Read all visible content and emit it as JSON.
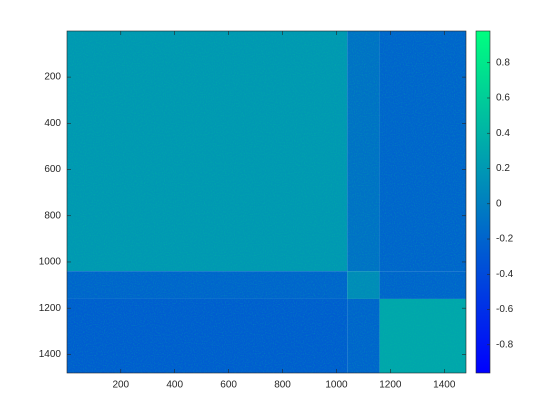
{
  "chart_data": {
    "type": "heatmap",
    "col_edges": [
      0.5,
      1040,
      1160,
      1480.5
    ],
    "row_edges": [
      0.5,
      1040,
      1160,
      1480.5
    ],
    "values": [
      [
        0.2,
        -0.1,
        -0.2
      ],
      [
        -0.2,
        0.1,
        -0.2
      ],
      [
        -0.25,
        -0.2,
        0.3
      ]
    ],
    "xlim": [
      0.5,
      1480.5
    ],
    "ylim": [
      0.5,
      1480.5
    ],
    "y_reversed": true,
    "xticks": [
      200,
      400,
      600,
      800,
      1000,
      1200,
      1400
    ],
    "yticks": [
      200,
      400,
      600,
      800,
      1000,
      1200,
      1400
    ],
    "colormap": "winter",
    "clim": [
      -0.96,
      0.98
    ],
    "cticks": [
      -0.8,
      -0.6,
      -0.4,
      -0.2,
      0,
      0.2,
      0.4,
      0.6,
      0.8
    ]
  }
}
